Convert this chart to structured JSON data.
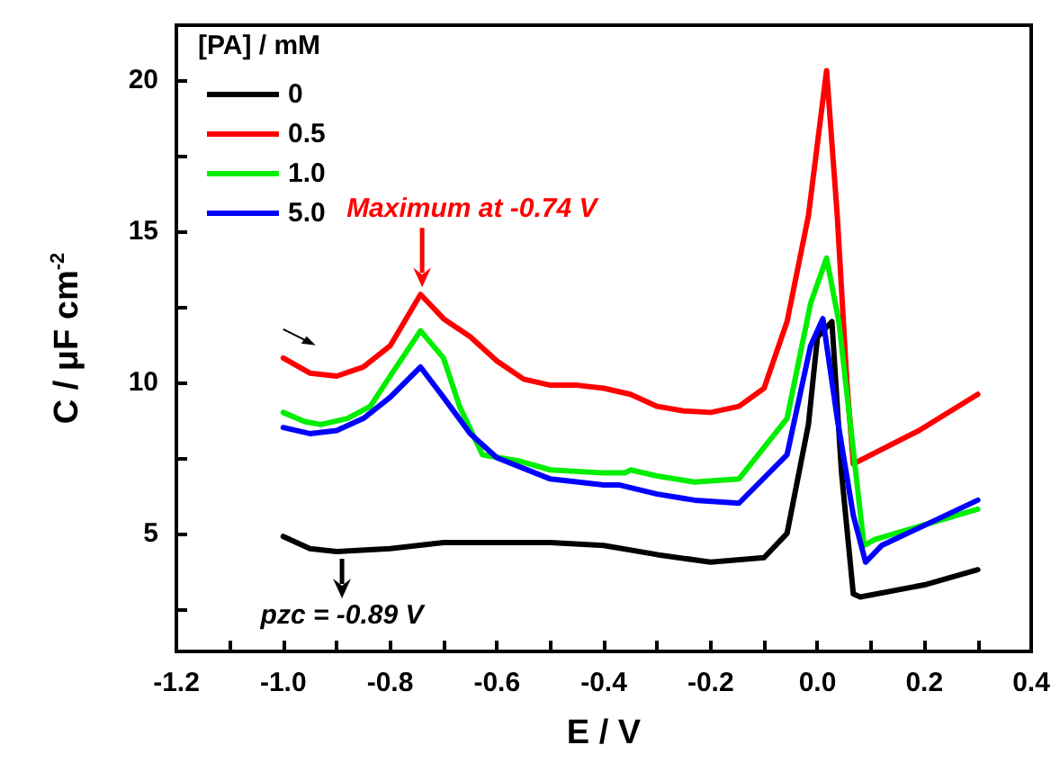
{
  "chart_data": {
    "type": "line",
    "xlabel": "E / V",
    "ylabel": "C / μF cm$^{-2}$",
    "legend_title": "[PA] / mM",
    "legend": "top left",
    "grid": false,
    "marker": "none",
    "line_style": "solid",
    "xlim": [
      -1.2,
      0.4
    ],
    "ylim": [
      1.1,
      21.8
    ],
    "xticks": [
      -1.2,
      {
        "value": -1.1,
        "label": null
      },
      {
        "value": -1.0,
        "label": "-1.0"
      },
      {
        "value": -0.9,
        "label": null
      },
      -0.8,
      {
        "value": -0.7,
        "label": null
      },
      -0.6,
      {
        "value": -0.5,
        "label": null
      },
      -0.4,
      {
        "value": -0.3,
        "label": null
      },
      -0.2,
      {
        "value": -0.1,
        "label": null
      },
      {
        "value": 0,
        "label": "0.0"
      },
      {
        "value": 0.1,
        "label": null
      },
      0.2,
      {
        "value": 0.3,
        "label": null
      },
      0.4
    ],
    "yticks": [
      {
        "value": 2.5,
        "label": null
      },
      5,
      {
        "value": 7.5,
        "label": null
      },
      10,
      {
        "value": 12.5,
        "label": null
      },
      15,
      {
        "value": 17.5,
        "label": null
      },
      20
    ],
    "annotations": [
      {
        "text": "Maximum at -0.74 V",
        "x": -0.74,
        "y": 12.9
      },
      {
        "text": "pzc = -0.89 V",
        "x": -0.89,
        "y": 4.4
      }
    ],
    "series": [
      {
        "name": "0",
        "color": "#000000",
        "x": [
          -1.0,
          -0.95,
          -0.9,
          -0.8,
          -0.7,
          -0.6,
          -0.5,
          -0.4,
          -0.3,
          -0.2,
          -0.1,
          -0.057,
          -0.017,
          0.0,
          0.027,
          0.045,
          0.067,
          0.08,
          0.2,
          0.3
        ],
        "values": [
          4.9,
          4.5,
          4.4,
          4.5,
          4.7,
          4.7,
          4.7,
          4.6,
          4.3,
          4.05,
          4.2,
          5.0,
          8.6,
          11.5,
          12.0,
          7.0,
          3.0,
          2.9,
          3.3,
          3.8
        ]
      },
      {
        "name": "0.5",
        "color": "#ff0000",
        "x": [
          -1.0,
          -0.95,
          -0.9,
          -0.85,
          -0.8,
          -0.743,
          -0.7,
          -0.65,
          -0.6,
          -0.55,
          -0.5,
          -0.45,
          -0.4,
          -0.35,
          -0.3,
          -0.25,
          -0.2,
          -0.147,
          -0.1,
          -0.057,
          -0.017,
          0.017,
          0.037,
          0.055,
          0.067,
          0.19,
          0.3
        ],
        "values": [
          10.8,
          10.3,
          10.2,
          10.5,
          11.2,
          12.9,
          12.1,
          11.5,
          10.7,
          10.1,
          9.9,
          9.9,
          9.8,
          9.6,
          9.2,
          9.05,
          9.0,
          9.2,
          9.8,
          12.0,
          15.5,
          20.3,
          15.5,
          10.0,
          7.3,
          8.4,
          9.6
        ]
      },
      {
        "name": "1.0",
        "color": "#00ee00",
        "x": [
          -1.0,
          -0.96,
          -0.93,
          -0.88,
          -0.837,
          -0.8,
          -0.743,
          -0.7,
          -0.67,
          -0.627,
          -0.56,
          -0.5,
          -0.4,
          -0.36,
          -0.35,
          -0.3,
          -0.23,
          -0.147,
          -0.057,
          -0.013,
          0.017,
          0.04,
          0.087,
          0.107,
          0.3
        ],
        "values": [
          9.0,
          8.7,
          8.6,
          8.8,
          9.2,
          10.2,
          11.7,
          10.8,
          9.2,
          7.6,
          7.4,
          7.1,
          7.0,
          7.0,
          7.1,
          6.9,
          6.7,
          6.8,
          8.8,
          12.6,
          14.1,
          12.0,
          4.6,
          4.8,
          5.8
        ]
      },
      {
        "name": "5.0",
        "color": "#0000ff",
        "x": [
          -1.0,
          -0.95,
          -0.9,
          -0.85,
          -0.8,
          -0.743,
          -0.7,
          -0.65,
          -0.6,
          -0.5,
          -0.4,
          -0.37,
          -0.3,
          -0.23,
          -0.147,
          -0.057,
          -0.013,
          0.01,
          0.037,
          0.067,
          0.09,
          0.12,
          0.3
        ],
        "values": [
          8.5,
          8.3,
          8.4,
          8.8,
          9.5,
          10.5,
          9.5,
          8.3,
          7.5,
          6.8,
          6.6,
          6.6,
          6.3,
          6.1,
          6.0,
          7.6,
          11.2,
          12.1,
          8.8,
          5.6,
          4.05,
          4.6,
          6.1
        ]
      }
    ]
  }
}
